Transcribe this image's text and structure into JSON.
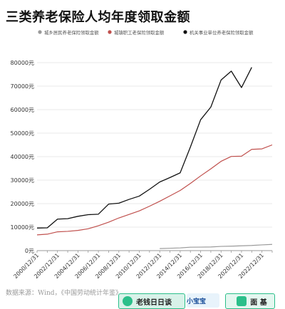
{
  "chart_data": {
    "type": "line",
    "title": "三类养老保险人均年度领取金额",
    "legend_position": "top",
    "grid": true,
    "ylim": [
      0,
      80000
    ],
    "yticks": [
      0,
      10000,
      20000,
      30000,
      40000,
      50000,
      60000,
      70000,
      80000
    ],
    "ytick_labels": [
      "0元",
      "10000元",
      "20000元",
      "30000元",
      "40000元",
      "50000元",
      "60000元",
      "70000元",
      "80000元"
    ],
    "x": [
      "2000/12/31",
      "2001/12/31",
      "2002/12/31",
      "2003/12/31",
      "2004/12/31",
      "2005/12/31",
      "2006/12/31",
      "2007/12/31",
      "2008/12/31",
      "2009/12/31",
      "2010/12/31",
      "2011/12/31",
      "2012/12/31",
      "2013/12/31",
      "2014/12/31",
      "2015/12/31",
      "2016/12/31",
      "2017/12/31",
      "2018/12/31",
      "2019/12/31",
      "2020/12/31",
      "2021/12/31",
      "2022/12/31",
      "2023/12/31"
    ],
    "xtick_labels": [
      "2000/12/31",
      "2002/12/31",
      "2004/12/31",
      "2006/12/31",
      "2008/12/31",
      "2010/12/31",
      "2012/12/31",
      "2014/12/31",
      "2016/12/31",
      "2018/12/31",
      "2020/12/31",
      "2022/12/31"
    ],
    "series": [
      {
        "name": "城乡居民养老保险领取金额",
        "color": "#9a9a9a",
        "values": [
          null,
          null,
          null,
          null,
          null,
          null,
          null,
          null,
          null,
          null,
          null,
          null,
          880,
          1000,
          1150,
          1450,
          1500,
          1550,
          1800,
          1900,
          2050,
          2200,
          2450,
          2650
        ]
      },
      {
        "name": "城镇职工老保险领取金额",
        "color": "#c0504d",
        "values": [
          6700,
          7000,
          8000,
          8200,
          8600,
          9300,
          10600,
          12100,
          13900,
          15400,
          16900,
          18900,
          21000,
          23300,
          25600,
          28600,
          31800,
          34800,
          38000,
          40100,
          40200,
          43100,
          43300,
          45000
        ]
      },
      {
        "name": "机关事业单位养老保险领取金额",
        "color": "#111111",
        "values": [
          9600,
          9700,
          13400,
          13600,
          14600,
          15300,
          15500,
          19800,
          20200,
          21800,
          23200,
          26100,
          29200,
          31100,
          33100,
          44100,
          55700,
          61100,
          72600,
          76400,
          69400,
          78000,
          null,
          null
        ]
      }
    ]
  },
  "source_note": "数据来源：Wind，《中国劳动统计年鉴》",
  "watermarks": {
    "badge1": "老钱日日谈",
    "badge2": "小宝宝",
    "badge3": "面 基"
  },
  "colors": {
    "grid": "#e0e0e0",
    "axis": "#999999",
    "tick_text": "#333333"
  }
}
